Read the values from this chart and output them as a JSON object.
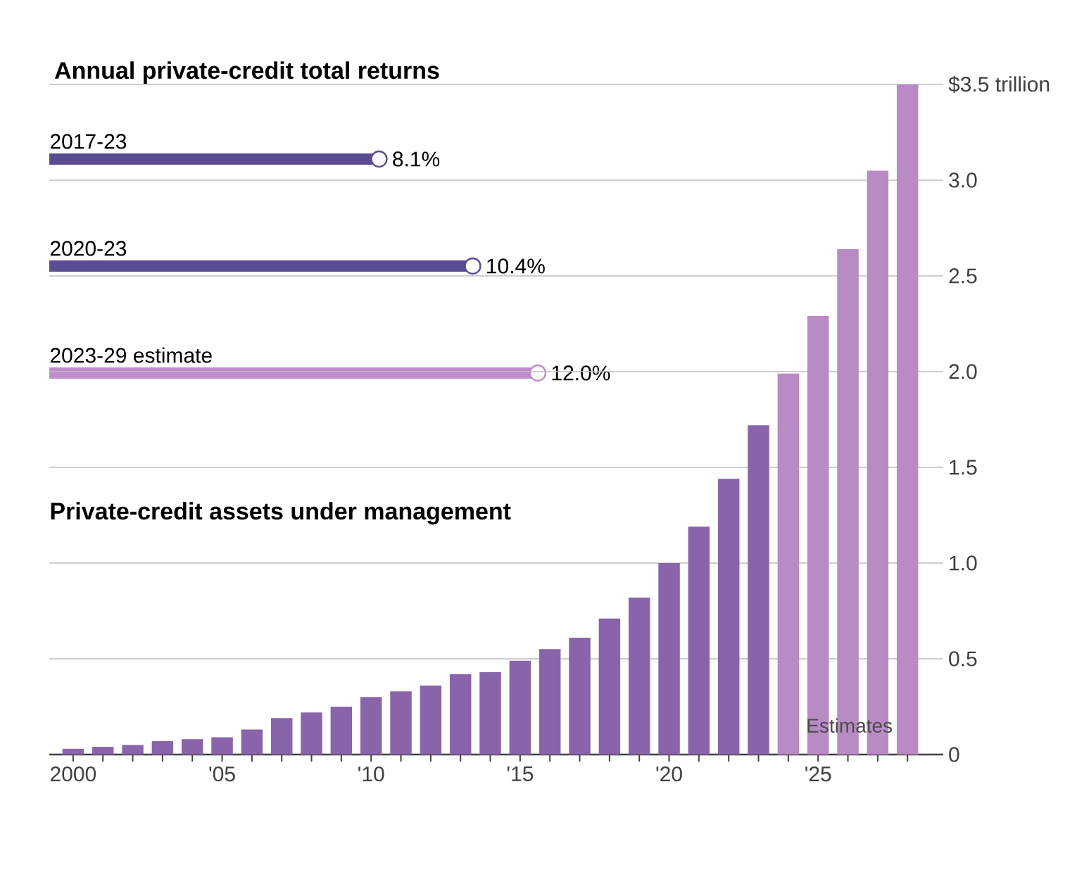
{
  "chart_data": [
    {
      "type": "lollipop",
      "title": "Annual private-credit total returns",
      "orientation": "horizontal",
      "categories": [
        "2017-23",
        "2020-23",
        "2023-29 estimate"
      ],
      "values": [
        8.1,
        10.4,
        12.0
      ],
      "value_labels": [
        "8.1%",
        "10.4%",
        "12.0%"
      ],
      "colors": [
        "#5b4b92",
        "#5b4b92",
        "#c08ccb"
      ],
      "marker": "circle",
      "tick_labels": false
    },
    {
      "type": "bar",
      "title": "Private-credit assets under management",
      "annotations": [
        "Estimates"
      ],
      "x": [
        2000,
        2001,
        2002,
        2003,
        2004,
        2005,
        2006,
        2007,
        2008,
        2009,
        2010,
        2011,
        2012,
        2013,
        2014,
        2015,
        2016,
        2017,
        2018,
        2019,
        2020,
        2021,
        2022,
        2023,
        2024,
        2025,
        2026,
        2027,
        2028
      ],
      "values": [
        0.03,
        0.04,
        0.05,
        0.07,
        0.08,
        0.09,
        0.13,
        0.19,
        0.22,
        0.25,
        0.3,
        0.33,
        0.36,
        0.42,
        0.43,
        0.49,
        0.55,
        0.61,
        0.71,
        0.82,
        1.0,
        1.19,
        1.44,
        1.72,
        1.99,
        2.29,
        2.64,
        3.05,
        3.5
      ],
      "colors": [
        "#8a64aa",
        "#8a64aa",
        "#8a64aa",
        "#8a64aa",
        "#8a64aa",
        "#8a64aa",
        "#8a64aa",
        "#8a64aa",
        "#8a64aa",
        "#8a64aa",
        "#8a64aa",
        "#8a64aa",
        "#8a64aa",
        "#8a64aa",
        "#8a64aa",
        "#8a64aa",
        "#8a64aa",
        "#8a64aa",
        "#8a64aa",
        "#8a64aa",
        "#8a64aa",
        "#8a64aa",
        "#8a64aa",
        "#8a64aa",
        "#b98bc4",
        "#b98bc4",
        "#b98bc4",
        "#b98bc4",
        "#b98bc4"
      ],
      "xlim": [
        1999.2,
        2029.2
      ],
      "xticks": [
        {
          "value": 2000,
          "label": "2000"
        },
        {
          "value": 2001,
          "label": null
        },
        {
          "value": 2002,
          "label": null
        },
        {
          "value": 2003,
          "label": null
        },
        {
          "value": 2004,
          "label": null
        },
        {
          "value": 2005,
          "label": "'05"
        },
        {
          "value": 2006,
          "label": null
        },
        {
          "value": 2007,
          "label": null
        },
        {
          "value": 2008,
          "label": null
        },
        {
          "value": 2009,
          "label": null
        },
        {
          "value": 2010,
          "label": "'10"
        },
        {
          "value": 2011,
          "label": null
        },
        {
          "value": 2012,
          "label": null
        },
        {
          "value": 2013,
          "label": null
        },
        {
          "value": 2014,
          "label": null
        },
        {
          "value": 2015,
          "label": "'15"
        },
        {
          "value": 2016,
          "label": null
        },
        {
          "value": 2017,
          "label": null
        },
        {
          "value": 2018,
          "label": null
        },
        {
          "value": 2019,
          "label": null
        },
        {
          "value": 2020,
          "label": "'20"
        },
        {
          "value": 2021,
          "label": null
        },
        {
          "value": 2022,
          "label": null
        },
        {
          "value": 2023,
          "label": null
        },
        {
          "value": 2024,
          "label": null
        },
        {
          "value": 2025,
          "label": "'25"
        },
        {
          "value": 2026,
          "label": null
        },
        {
          "value": 2027,
          "label": null
        },
        {
          "value": 2028,
          "label": null
        }
      ],
      "ylim": [
        0,
        3.5
      ],
      "yticks": [
        0,
        0.5,
        {
          "value": 1,
          "label": "1.0"
        },
        1.5,
        {
          "value": 2,
          "label": "2.0"
        },
        2.5,
        {
          "value": 3,
          "label": "3.0"
        },
        {
          "value": 3.5,
          "label": "$3.5 trillion"
        }
      ],
      "grid": "y"
    }
  ]
}
